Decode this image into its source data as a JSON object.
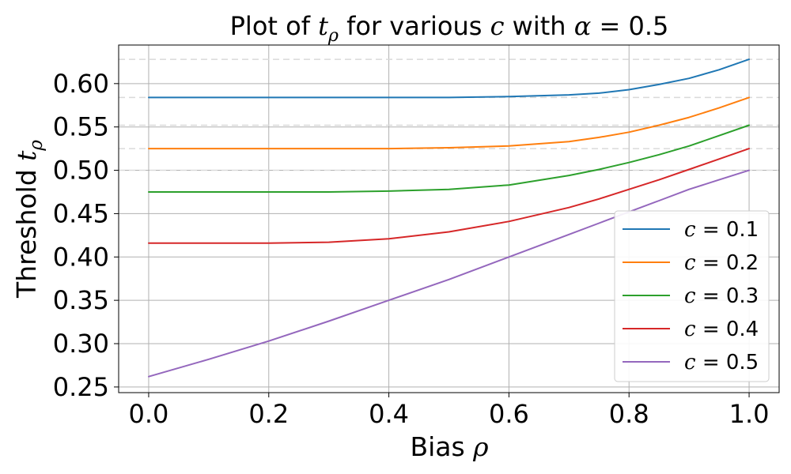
{
  "chart_data": {
    "type": "line",
    "title": {
      "prefix": "Plot of ",
      "var": "t",
      "sub": "ρ",
      "middle": " for various ",
      "var2": "c",
      "middle2": " with ",
      "var3": "α",
      "suffix": " = 0.5"
    },
    "xlabel": {
      "text": "Bias ",
      "var": "ρ"
    },
    "ylabel": {
      "text": "Threshold ",
      "var": "t",
      "sub": "ρ"
    },
    "xlim": [
      -0.05,
      1.05
    ],
    "ylim": [
      0.2435,
      0.6445
    ],
    "xticks": [
      0.0,
      0.2,
      0.4,
      0.6,
      0.8,
      1.0
    ],
    "xtick_labels": [
      "0.0",
      "0.2",
      "0.4",
      "0.6",
      "0.8",
      "1.0"
    ],
    "yticks": [
      0.25,
      0.3,
      0.35,
      0.4,
      0.45,
      0.5,
      0.55,
      0.6
    ],
    "ytick_labels": [
      "0.25",
      "0.30",
      "0.35",
      "0.40",
      "0.45",
      "0.50",
      "0.55",
      "0.60"
    ],
    "grid": true,
    "legend_position": "lower-right",
    "reference_lines_y": [
      0.5,
      0.525,
      0.552,
      0.584,
      0.628
    ],
    "x": [
      0.0,
      0.1,
      0.2,
      0.3,
      0.4,
      0.5,
      0.6,
      0.7,
      0.75,
      0.8,
      0.85,
      0.9,
      0.95,
      1.0
    ],
    "series": [
      {
        "name": "c = 0.1",
        "var": "c",
        "val": " = 0.1",
        "color": "#1f77b4",
        "values": [
          0.584,
          0.584,
          0.584,
          0.584,
          0.584,
          0.584,
          0.585,
          0.587,
          0.589,
          0.593,
          0.599,
          0.606,
          0.616,
          0.628
        ]
      },
      {
        "name": "c = 0.2",
        "var": "c",
        "val": " = 0.2",
        "color": "#ff7f0e",
        "values": [
          0.525,
          0.525,
          0.525,
          0.525,
          0.525,
          0.526,
          0.528,
          0.533,
          0.538,
          0.544,
          0.552,
          0.561,
          0.572,
          0.584
        ]
      },
      {
        "name": "c = 0.3",
        "var": "c",
        "val": " = 0.3",
        "color": "#2ca02c",
        "values": [
          0.475,
          0.475,
          0.475,
          0.475,
          0.476,
          0.478,
          0.483,
          0.494,
          0.501,
          0.509,
          0.518,
          0.528,
          0.54,
          0.552
        ]
      },
      {
        "name": "c = 0.4",
        "var": "c",
        "val": " = 0.4",
        "color": "#d62728",
        "values": [
          0.416,
          0.416,
          0.416,
          0.417,
          0.421,
          0.429,
          0.441,
          0.457,
          0.467,
          0.478,
          0.489,
          0.501,
          0.513,
          0.525
        ]
      },
      {
        "name": "c = 0.5",
        "var": "c",
        "val": " = 0.5",
        "color": "#9467bd",
        "values": [
          0.262,
          0.282,
          0.303,
          0.326,
          0.35,
          0.374,
          0.4,
          0.426,
          0.439,
          0.452,
          0.465,
          0.478,
          0.489,
          0.5
        ]
      }
    ]
  }
}
